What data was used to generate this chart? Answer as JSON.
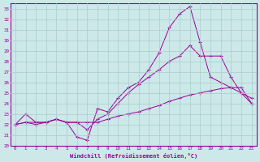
{
  "xlabel": "Windchill (Refroidissement éolien,°C)",
  "xlim": [
    -0.5,
    23.5
  ],
  "ylim": [
    20,
    33.5
  ],
  "yticks": [
    20,
    21,
    22,
    23,
    24,
    25,
    26,
    27,
    28,
    29,
    30,
    31,
    32,
    33
  ],
  "xticks": [
    0,
    1,
    2,
    3,
    4,
    5,
    6,
    7,
    8,
    9,
    10,
    11,
    12,
    13,
    14,
    15,
    16,
    17,
    18,
    19,
    20,
    21,
    22,
    23
  ],
  "background_color": "#cce8e8",
  "grid_color": "#aacccc",
  "line_color": "#990099",
  "series": [
    [
      22.0,
      23.0,
      22.2,
      22.2,
      22.5,
      22.2,
      20.8,
      20.5,
      23.5,
      23.2,
      24.5,
      25.5,
      26.0,
      27.2,
      28.8,
      31.2,
      32.5,
      33.2,
      29.8,
      26.5,
      26.0,
      25.5,
      25.0,
      24.5
    ],
    [
      22.0,
      22.2,
      22.2,
      22.2,
      22.5,
      22.2,
      22.2,
      22.2,
      22.2,
      22.5,
      22.8,
      23.0,
      23.2,
      23.5,
      23.8,
      24.2,
      24.5,
      24.8,
      25.0,
      25.2,
      25.4,
      25.5,
      25.5,
      24.0
    ],
    [
      22.0,
      22.2,
      22.0,
      22.2,
      22.5,
      22.2,
      22.2,
      21.5,
      22.5,
      23.0,
      24.0,
      25.0,
      25.8,
      26.5,
      27.2,
      28.0,
      28.5,
      29.5,
      28.5,
      28.5,
      28.5,
      26.5,
      25.0,
      24.0
    ]
  ]
}
